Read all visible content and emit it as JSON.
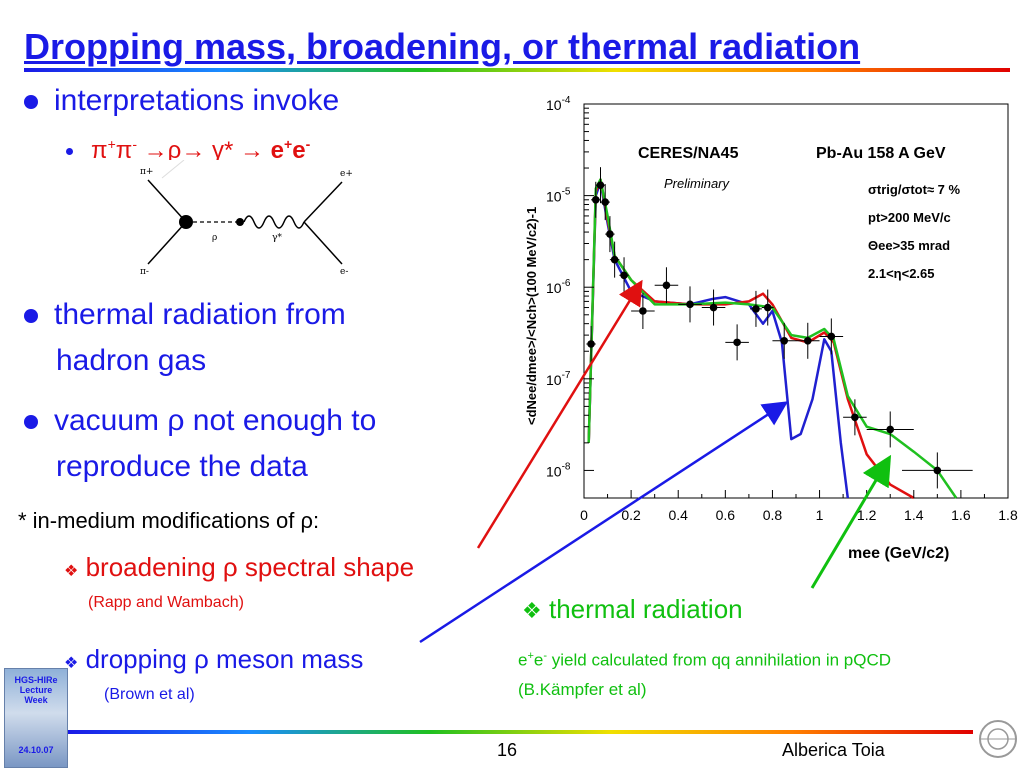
{
  "slide": {
    "title": "Dropping mass, broadening, or thermal radiation",
    "bullet1": "interpretations invoke",
    "sub1_pi": "π",
    "sub1_plus": "+",
    "sub1_pi2": "π",
    "sub1_minus": "-",
    "sub1_arrow1": "→",
    "sub1_rho": "ρ",
    "sub1_arrow2": "→",
    "sub1_gamma": "γ*",
    "sub1_arrow3": "→",
    "sub1_e": "e",
    "sub1_eplus": "+",
    "sub1_e2": "e",
    "sub1_eminus": "-",
    "bullet2_l1": "thermal radiation from",
    "bullet2_l2": "hadron gas",
    "bullet3_l1": "vacuum ρ not enough to",
    "bullet3_l2": "reproduce the data",
    "inmedium": "* in-medium modifications of ρ:",
    "broadening": "broadening ρ spectral  shape",
    "rapp": "(Rapp and Wambach)",
    "dropping": "dropping ρ meson mass",
    "brown": "(Brown et al)",
    "thermal": "thermal radiation",
    "yield_e": "e",
    "yield_plus": "+",
    "yield_e2": "e",
    "yield_minus": "-",
    "yield_rest": " yield calculated from qq annihilation in pQCD",
    "kampfer": "(B.Kämpfer et al)",
    "page_number": "16",
    "author": "Alberica Toia",
    "badge_l1": "HGS-HIRe",
    "badge_l2": "Lecture",
    "badge_l3": "Week",
    "badge_l4": "24.10.07",
    "diamond": "❖"
  },
  "feynman": {
    "pi_plus": "π+",
    "pi_minus": "π-",
    "rho": "ρ",
    "gamma": "γ*",
    "e_plus": "e+",
    "e_minus": "e-"
  },
  "chart_data": {
    "type": "line",
    "experiment": "CERES/NA45",
    "system": "Pb-Au 158 A GeV",
    "preliminary": "Preliminary",
    "cuts": [
      "σtrig/σtot≈ 7 %",
      "pt>200 MeV/c",
      "Θee>35 mrad",
      "2.1<η<2.65"
    ],
    "xlabel": "mee (GeV/c2)",
    "ylabel": "<dNee/dmee>/<Nch>(100 MeV/c2)-1",
    "yscale": "log",
    "xlim": [
      0,
      1.8
    ],
    "ylim": [
      5e-09,
      0.0001
    ],
    "xticks": [
      0,
      0.2,
      0.4,
      0.6,
      0.8,
      1,
      1.2,
      1.4,
      1.6,
      1.8
    ],
    "xtick_labels": [
      "0",
      "0.2",
      "0.4",
      "0.6",
      "0.8",
      "1",
      "1.2",
      "1.4",
      "1.6",
      "1.8"
    ],
    "ytick_labels": [
      {
        "base": "10",
        "exp": "-4",
        "value": 0.0001
      },
      {
        "base": "10",
        "exp": "-5",
        "value": 1e-05
      },
      {
        "base": "10",
        "exp": "-6",
        "value": 1e-06
      },
      {
        "base": "10",
        "exp": "-7",
        "value": 1e-07
      },
      {
        "base": "10",
        "exp": "-8",
        "value": 1e-08
      }
    ],
    "data_points": [
      {
        "x": 0.03,
        "y": 2.4e-07,
        "xerr": 0.02
      },
      {
        "x": 0.05,
        "y": 9e-06,
        "xerr": 0.02
      },
      {
        "x": 0.07,
        "y": 1.3e-05,
        "xerr": 0.02
      },
      {
        "x": 0.09,
        "y": 8.5e-06,
        "xerr": 0.02
      },
      {
        "x": 0.11,
        "y": 3.8e-06,
        "xerr": 0.02
      },
      {
        "x": 0.13,
        "y": 2e-06,
        "xerr": 0.02
      },
      {
        "x": 0.17,
        "y": 1.35e-06,
        "xerr": 0.02
      },
      {
        "x": 0.25,
        "y": 5.5e-07,
        "xerr": 0.05
      },
      {
        "x": 0.35,
        "y": 1.05e-06,
        "xerr": 0.05
      },
      {
        "x": 0.45,
        "y": 6.5e-07,
        "xerr": 0.05
      },
      {
        "x": 0.55,
        "y": 6e-07,
        "xerr": 0.05
      },
      {
        "x": 0.65,
        "y": 2.5e-07,
        "xerr": 0.05
      },
      {
        "x": 0.73,
        "y": 5.8e-07,
        "xerr": 0.025
      },
      {
        "x": 0.78,
        "y": 6e-07,
        "xerr": 0.025
      },
      {
        "x": 0.85,
        "y": 2.6e-07,
        "xerr": 0.05
      },
      {
        "x": 0.95,
        "y": 2.6e-07,
        "xerr": 0.05
      },
      {
        "x": 1.05,
        "y": 2.9e-07,
        "xerr": 0.05
      },
      {
        "x": 1.15,
        "y": 3.8e-08,
        "xerr": 0.05
      },
      {
        "x": 1.3,
        "y": 2.8e-08,
        "xerr": 0.1
      },
      {
        "x": 1.5,
        "y": 1e-08,
        "xerr": 0.15
      }
    ],
    "series": [
      {
        "color": "#2020d0",
        "points": [
          [
            0.02,
            2e-08
          ],
          [
            0.05,
            1e-05
          ],
          [
            0.07,
            1.4e-05
          ],
          [
            0.1,
            5e-06
          ],
          [
            0.13,
            2e-06
          ],
          [
            0.2,
            9e-07
          ],
          [
            0.3,
            7e-07
          ],
          [
            0.45,
            6.5e-07
          ],
          [
            0.55,
            7.5e-07
          ],
          [
            0.6,
            7.8e-07
          ],
          [
            0.7,
            6.5e-07
          ],
          [
            0.76,
            4e-07
          ],
          [
            0.8,
            5.5e-07
          ],
          [
            0.84,
            2.5e-07
          ],
          [
            0.88,
            2.2e-08
          ],
          [
            0.92,
            2.5e-08
          ],
          [
            0.97,
            6e-08
          ],
          [
            1.02,
            2.7e-07
          ],
          [
            1.05,
            2e-07
          ],
          [
            1.09,
            2e-08
          ],
          [
            1.12,
            5e-09
          ]
        ]
      },
      {
        "color": "#e01010",
        "points": [
          [
            0.02,
            2e-08
          ],
          [
            0.05,
            1.1e-05
          ],
          [
            0.07,
            1.5e-05
          ],
          [
            0.1,
            5.5e-06
          ],
          [
            0.13,
            2.2e-06
          ],
          [
            0.2,
            1.2e-06
          ],
          [
            0.3,
            7e-07
          ],
          [
            0.45,
            6.5e-07
          ],
          [
            0.6,
            6.5e-07
          ],
          [
            0.7,
            7e-07
          ],
          [
            0.76,
            8.5e-07
          ],
          [
            0.8,
            6.5e-07
          ],
          [
            0.88,
            2.8e-07
          ],
          [
            0.95,
            2.5e-07
          ],
          [
            1.02,
            3.2e-07
          ],
          [
            1.06,
            2.5e-07
          ],
          [
            1.12,
            6e-08
          ],
          [
            1.2,
            1.5e-08
          ],
          [
            1.3,
            7e-09
          ],
          [
            1.4,
            5e-09
          ]
        ]
      },
      {
        "color": "#20c020",
        "points": [
          [
            0.02,
            2e-08
          ],
          [
            0.05,
            1.2e-05
          ],
          [
            0.07,
            1.5e-05
          ],
          [
            0.1,
            6e-06
          ],
          [
            0.13,
            2.2e-06
          ],
          [
            0.2,
            1.2e-06
          ],
          [
            0.3,
            6.5e-07
          ],
          [
            0.45,
            6.5e-07
          ],
          [
            0.6,
            6.8e-07
          ],
          [
            0.7,
            6.5e-07
          ],
          [
            0.8,
            6e-07
          ],
          [
            0.88,
            3e-07
          ],
          [
            0.95,
            2.8e-07
          ],
          [
            1.02,
            3.5e-07
          ],
          [
            1.06,
            2.7e-07
          ],
          [
            1.12,
            6.5e-08
          ],
          [
            1.2,
            3e-08
          ],
          [
            1.3,
            2.5e-08
          ],
          [
            1.4,
            1.6e-08
          ],
          [
            1.5,
            1e-08
          ],
          [
            1.58,
            5e-09
          ]
        ]
      }
    ]
  }
}
